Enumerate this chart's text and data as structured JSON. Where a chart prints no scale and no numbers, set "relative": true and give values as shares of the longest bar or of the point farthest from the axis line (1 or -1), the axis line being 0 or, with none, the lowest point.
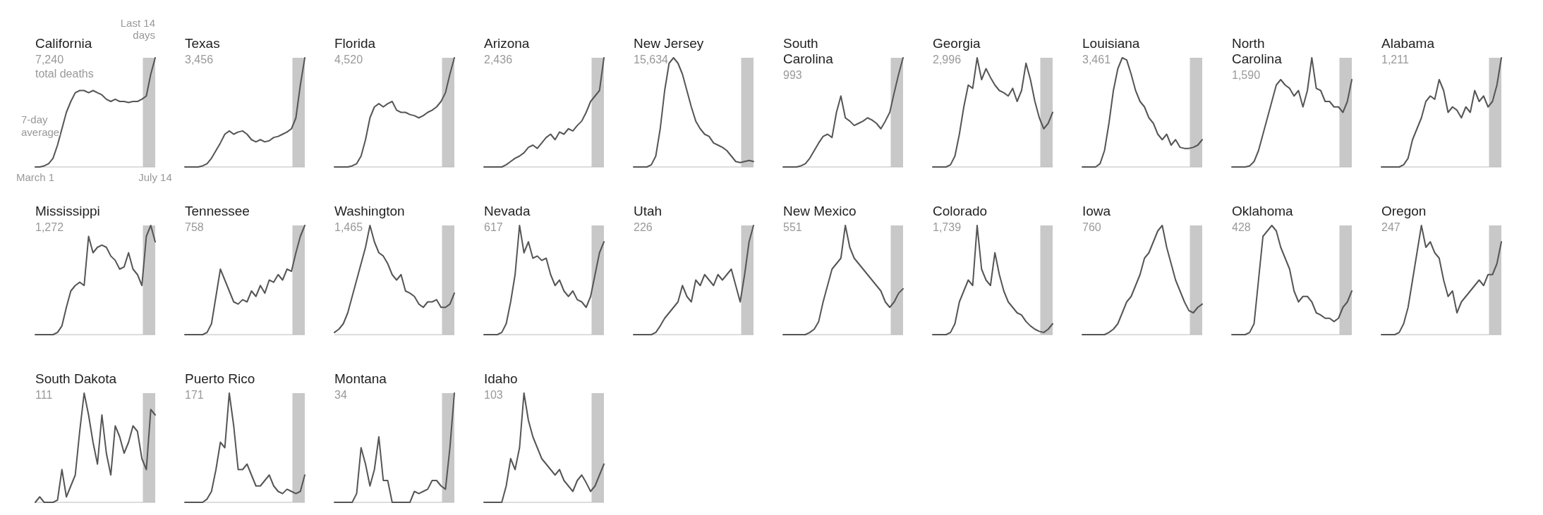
{
  "chart_data": [
    {
      "type": "line",
      "title": "California",
      "subtitle": "7,240",
      "annotations": [
        "total deaths",
        "7-day average",
        "Last 14 days"
      ],
      "relative": true,
      "color": "#555555",
      "tick_labels": "x",
      "categories": [
        "March 1",
        null,
        null,
        null,
        null,
        null,
        null,
        null,
        null,
        null,
        null,
        null,
        null,
        null,
        null,
        null,
        null,
        null,
        null,
        null,
        null,
        null,
        null,
        null,
        null,
        null,
        null,
        "July 14"
      ],
      "values": [
        0,
        0,
        0.01,
        0.03,
        0.08,
        0.2,
        0.35,
        0.5,
        0.6,
        0.68,
        0.7,
        0.7,
        0.68,
        0.7,
        0.68,
        0.66,
        0.62,
        0.6,
        0.62,
        0.6,
        0.6,
        0.59,
        0.6,
        0.6,
        0.62,
        0.65,
        0.85,
        1
      ]
    },
    {
      "type": "line",
      "title": "Texas",
      "subtitle": "3,456",
      "relative": true,
      "color": "#555555",
      "tick_labels": false,
      "categories": [
        null,
        null,
        null,
        null,
        null,
        null,
        null,
        null,
        null,
        null,
        null,
        null,
        null,
        null,
        null,
        null,
        null,
        null,
        null,
        null,
        null,
        null,
        null,
        null,
        null,
        null,
        null,
        null
      ],
      "values": [
        0,
        0,
        0,
        0,
        0.01,
        0.03,
        0.08,
        0.15,
        0.22,
        0.3,
        0.33,
        0.3,
        0.32,
        0.33,
        0.3,
        0.25,
        0.23,
        0.25,
        0.23,
        0.24,
        0.27,
        0.28,
        0.3,
        0.32,
        0.35,
        0.45,
        0.75,
        1
      ]
    },
    {
      "type": "line",
      "title": "Florida",
      "subtitle": "4,520",
      "relative": true,
      "color": "#555555",
      "tick_labels": false,
      "categories": [
        null,
        null,
        null,
        null,
        null,
        null,
        null,
        null,
        null,
        null,
        null,
        null,
        null,
        null,
        null,
        null,
        null,
        null,
        null,
        null,
        null,
        null,
        null,
        null,
        null,
        null,
        null,
        null
      ],
      "values": [
        0,
        0,
        0,
        0,
        0.01,
        0.03,
        0.1,
        0.25,
        0.45,
        0.55,
        0.58,
        0.55,
        0.58,
        0.6,
        0.52,
        0.5,
        0.5,
        0.48,
        0.47,
        0.45,
        0.47,
        0.5,
        0.52,
        0.55,
        0.6,
        0.68,
        0.85,
        1
      ]
    },
    {
      "type": "line",
      "title": "Arizona",
      "subtitle": "2,436",
      "relative": true,
      "color": "#555555",
      "tick_labels": false,
      "categories": [
        null,
        null,
        null,
        null,
        null,
        null,
        null,
        null,
        null,
        null,
        null,
        null,
        null,
        null,
        null,
        null,
        null,
        null,
        null,
        null,
        null,
        null,
        null,
        null,
        null,
        null,
        null,
        null
      ],
      "values": [
        0,
        0,
        0,
        0,
        0,
        0.02,
        0.05,
        0.08,
        0.1,
        0.13,
        0.18,
        0.2,
        0.17,
        0.22,
        0.27,
        0.3,
        0.25,
        0.32,
        0.3,
        0.35,
        0.33,
        0.38,
        0.42,
        0.5,
        0.6,
        0.65,
        0.7,
        1
      ]
    },
    {
      "type": "line",
      "title": "New Jersey",
      "subtitle": "15,634",
      "relative": true,
      "color": "#555555",
      "tick_labels": false,
      "categories": [
        null,
        null,
        null,
        null,
        null,
        null,
        null,
        null,
        null,
        null,
        null,
        null,
        null,
        null,
        null,
        null,
        null,
        null,
        null,
        null,
        null,
        null,
        null,
        null,
        null,
        null,
        null,
        null
      ],
      "values": [
        0,
        0,
        0,
        0,
        0.02,
        0.1,
        0.35,
        0.7,
        0.95,
        1,
        0.95,
        0.85,
        0.7,
        0.55,
        0.42,
        0.35,
        0.3,
        0.28,
        0.22,
        0.2,
        0.18,
        0.15,
        0.1,
        0.05,
        0.04,
        0.05,
        0.06,
        0.05
      ]
    },
    {
      "type": "line",
      "title": "South Carolina",
      "subtitle": "993",
      "relative": true,
      "color": "#555555",
      "tick_labels": false,
      "categories": [
        null,
        null,
        null,
        null,
        null,
        null,
        null,
        null,
        null,
        null,
        null,
        null,
        null,
        null,
        null,
        null,
        null,
        null,
        null,
        null,
        null,
        null,
        null,
        null,
        null,
        null,
        null,
        null
      ],
      "values": [
        0,
        0,
        0,
        0,
        0.01,
        0.03,
        0.08,
        0.15,
        0.22,
        0.28,
        0.3,
        0.27,
        0.5,
        0.65,
        0.45,
        0.42,
        0.38,
        0.4,
        0.42,
        0.45,
        0.43,
        0.4,
        0.35,
        0.42,
        0.5,
        0.68,
        0.85,
        1
      ]
    },
    {
      "type": "line",
      "title": "Georgia",
      "subtitle": "2,996",
      "relative": true,
      "color": "#555555",
      "tick_labels": false,
      "categories": [
        null,
        null,
        null,
        null,
        null,
        null,
        null,
        null,
        null,
        null,
        null,
        null,
        null,
        null,
        null,
        null,
        null,
        null,
        null,
        null,
        null,
        null,
        null,
        null,
        null,
        null,
        null,
        null
      ],
      "values": [
        0,
        0,
        0,
        0,
        0.02,
        0.1,
        0.3,
        0.55,
        0.75,
        0.72,
        1,
        0.8,
        0.9,
        0.82,
        0.75,
        0.7,
        0.68,
        0.65,
        0.72,
        0.6,
        0.7,
        0.95,
        0.8,
        0.6,
        0.45,
        0.35,
        0.4,
        0.5
      ]
    },
    {
      "type": "line",
      "title": "Louisiana",
      "subtitle": "3,461",
      "relative": true,
      "color": "#555555",
      "tick_labels": false,
      "categories": [
        null,
        null,
        null,
        null,
        null,
        null,
        null,
        null,
        null,
        null,
        null,
        null,
        null,
        null,
        null,
        null,
        null,
        null,
        null,
        null,
        null,
        null,
        null,
        null,
        null,
        null,
        null,
        null
      ],
      "values": [
        0,
        0,
        0,
        0,
        0.03,
        0.15,
        0.4,
        0.7,
        0.9,
        1,
        0.98,
        0.85,
        0.7,
        0.6,
        0.55,
        0.45,
        0.4,
        0.3,
        0.25,
        0.3,
        0.2,
        0.25,
        0.18,
        0.17,
        0.17,
        0.18,
        0.2,
        0.25
      ]
    },
    {
      "type": "line",
      "title": "North Carolina",
      "subtitle": "1,590",
      "relative": true,
      "color": "#555555",
      "tick_labels": false,
      "categories": [
        null,
        null,
        null,
        null,
        null,
        null,
        null,
        null,
        null,
        null,
        null,
        null,
        null,
        null,
        null,
        null,
        null,
        null,
        null,
        null,
        null,
        null,
        null,
        null,
        null,
        null,
        null,
        null
      ],
      "values": [
        0,
        0,
        0,
        0,
        0.01,
        0.05,
        0.15,
        0.3,
        0.45,
        0.6,
        0.75,
        0.8,
        0.75,
        0.72,
        0.65,
        0.7,
        0.55,
        0.7,
        1,
        0.72,
        0.7,
        0.6,
        0.6,
        0.55,
        0.55,
        0.5,
        0.6,
        0.8
      ]
    },
    {
      "type": "line",
      "title": "Alabama",
      "subtitle": "1,211",
      "relative": true,
      "color": "#555555",
      "tick_labels": false,
      "categories": [
        null,
        null,
        null,
        null,
        null,
        null,
        null,
        null,
        null,
        null,
        null,
        null,
        null,
        null,
        null,
        null,
        null,
        null,
        null,
        null,
        null,
        null,
        null,
        null,
        null,
        null,
        null,
        null
      ],
      "values": [
        0,
        0,
        0,
        0,
        0,
        0.02,
        0.08,
        0.25,
        0.35,
        0.45,
        0.6,
        0.65,
        0.62,
        0.8,
        0.7,
        0.5,
        0.55,
        0.52,
        0.45,
        0.55,
        0.5,
        0.7,
        0.6,
        0.65,
        0.55,
        0.6,
        0.75,
        1
      ]
    },
    {
      "type": "line",
      "title": "Mississippi",
      "subtitle": "1,272",
      "relative": true,
      "color": "#555555",
      "tick_labels": false,
      "categories": [
        null,
        null,
        null,
        null,
        null,
        null,
        null,
        null,
        null,
        null,
        null,
        null,
        null,
        null,
        null,
        null,
        null,
        null,
        null,
        null,
        null,
        null,
        null,
        null,
        null,
        null,
        null,
        null
      ],
      "values": [
        0,
        0,
        0,
        0,
        0,
        0.02,
        0.08,
        0.25,
        0.4,
        0.45,
        0.48,
        0.45,
        0.9,
        0.75,
        0.8,
        0.82,
        0.8,
        0.72,
        0.68,
        0.6,
        0.62,
        0.75,
        0.6,
        0.55,
        0.45,
        0.9,
        1,
        0.85
      ]
    },
    {
      "type": "line",
      "title": "Tennessee",
      "subtitle": "758",
      "relative": true,
      "color": "#555555",
      "tick_labels": false,
      "categories": [
        null,
        null,
        null,
        null,
        null,
        null,
        null,
        null,
        null,
        null,
        null,
        null,
        null,
        null,
        null,
        null,
        null,
        null,
        null,
        null,
        null,
        null,
        null,
        null,
        null,
        null,
        null,
        null
      ],
      "values": [
        0,
        0,
        0,
        0,
        0,
        0.02,
        0.1,
        0.35,
        0.6,
        0.5,
        0.4,
        0.3,
        0.28,
        0.32,
        0.3,
        0.4,
        0.35,
        0.45,
        0.38,
        0.5,
        0.48,
        0.55,
        0.5,
        0.6,
        0.58,
        0.75,
        0.9,
        1
      ]
    },
    {
      "type": "line",
      "title": "Washington",
      "subtitle": "1,465",
      "relative": true,
      "color": "#555555",
      "tick_labels": false,
      "categories": [
        null,
        null,
        null,
        null,
        null,
        null,
        null,
        null,
        null,
        null,
        null,
        null,
        null,
        null,
        null,
        null,
        null,
        null,
        null,
        null,
        null,
        null,
        null,
        null,
        null,
        null,
        null,
        null
      ],
      "values": [
        0.02,
        0.05,
        0.1,
        0.2,
        0.35,
        0.5,
        0.65,
        0.8,
        1,
        0.85,
        0.75,
        0.72,
        0.65,
        0.55,
        0.5,
        0.55,
        0.4,
        0.38,
        0.35,
        0.28,
        0.25,
        0.3,
        0.3,
        0.32,
        0.25,
        0.25,
        0.28,
        0.38
      ]
    },
    {
      "type": "line",
      "title": "Nevada",
      "subtitle": "617",
      "relative": true,
      "color": "#555555",
      "tick_labels": false,
      "categories": [
        null,
        null,
        null,
        null,
        null,
        null,
        null,
        null,
        null,
        null,
        null,
        null,
        null,
        null,
        null,
        null,
        null,
        null,
        null,
        null,
        null,
        null,
        null,
        null,
        null,
        null,
        null,
        null
      ],
      "values": [
        0,
        0,
        0,
        0,
        0.02,
        0.1,
        0.3,
        0.55,
        1,
        0.75,
        0.85,
        0.7,
        0.72,
        0.68,
        0.7,
        0.55,
        0.45,
        0.5,
        0.4,
        0.35,
        0.4,
        0.32,
        0.3,
        0.25,
        0.35,
        0.55,
        0.75,
        0.85
      ]
    },
    {
      "type": "line",
      "title": "Utah",
      "subtitle": "226",
      "relative": true,
      "color": "#555555",
      "tick_labels": false,
      "categories": [
        null,
        null,
        null,
        null,
        null,
        null,
        null,
        null,
        null,
        null,
        null,
        null,
        null,
        null,
        null,
        null,
        null,
        null,
        null,
        null,
        null,
        null,
        null,
        null,
        null,
        null,
        null,
        null
      ],
      "values": [
        0,
        0,
        0,
        0,
        0,
        0.02,
        0.08,
        0.15,
        0.2,
        0.25,
        0.3,
        0.45,
        0.35,
        0.3,
        0.5,
        0.45,
        0.55,
        0.5,
        0.45,
        0.55,
        0.5,
        0.55,
        0.6,
        0.45,
        0.3,
        0.55,
        0.85,
        1
      ]
    },
    {
      "type": "line",
      "title": "New Mexico",
      "subtitle": "551",
      "relative": true,
      "color": "#555555",
      "tick_labels": false,
      "categories": [
        null,
        null,
        null,
        null,
        null,
        null,
        null,
        null,
        null,
        null,
        null,
        null,
        null,
        null,
        null,
        null,
        null,
        null,
        null,
        null,
        null,
        null,
        null,
        null,
        null,
        null,
        null,
        null
      ],
      "values": [
        0,
        0,
        0,
        0,
        0,
        0,
        0.02,
        0.05,
        0.12,
        0.3,
        0.45,
        0.6,
        0.65,
        0.7,
        1,
        0.8,
        0.7,
        0.65,
        0.6,
        0.55,
        0.5,
        0.45,
        0.4,
        0.3,
        0.25,
        0.3,
        0.38,
        0.42
      ]
    },
    {
      "type": "line",
      "title": "Colorado",
      "subtitle": "1,739",
      "relative": true,
      "color": "#555555",
      "tick_labels": false,
      "categories": [
        null,
        null,
        null,
        null,
        null,
        null,
        null,
        null,
        null,
        null,
        null,
        null,
        null,
        null,
        null,
        null,
        null,
        null,
        null,
        null,
        null,
        null,
        null,
        null,
        null,
        null,
        null,
        null
      ],
      "values": [
        0,
        0,
        0,
        0,
        0.02,
        0.1,
        0.3,
        0.4,
        0.5,
        0.45,
        1,
        0.6,
        0.5,
        0.45,
        0.75,
        0.55,
        0.4,
        0.3,
        0.25,
        0.2,
        0.18,
        0.12,
        0.08,
        0.05,
        0.03,
        0.02,
        0.05,
        0.1
      ]
    },
    {
      "type": "line",
      "title": "Iowa",
      "subtitle": "760",
      "relative": true,
      "color": "#555555",
      "tick_labels": false,
      "categories": [
        null,
        null,
        null,
        null,
        null,
        null,
        null,
        null,
        null,
        null,
        null,
        null,
        null,
        null,
        null,
        null,
        null,
        null,
        null,
        null,
        null,
        null,
        null,
        null,
        null,
        null,
        null,
        null
      ],
      "values": [
        0,
        0,
        0,
        0,
        0,
        0,
        0.02,
        0.05,
        0.1,
        0.2,
        0.3,
        0.35,
        0.45,
        0.55,
        0.7,
        0.75,
        0.85,
        0.95,
        1,
        0.8,
        0.65,
        0.5,
        0.4,
        0.3,
        0.22,
        0.2,
        0.25,
        0.28
      ]
    },
    {
      "type": "line",
      "title": "Oklahoma",
      "subtitle": "428",
      "relative": true,
      "color": "#555555",
      "tick_labels": false,
      "categories": [
        null,
        null,
        null,
        null,
        null,
        null,
        null,
        null,
        null,
        null,
        null,
        null,
        null,
        null,
        null,
        null,
        null,
        null,
        null,
        null,
        null,
        null,
        null,
        null,
        null,
        null,
        null,
        null
      ],
      "values": [
        0,
        0,
        0,
        0,
        0.02,
        0.1,
        0.5,
        0.9,
        0.95,
        1,
        0.95,
        0.8,
        0.7,
        0.6,
        0.4,
        0.3,
        0.35,
        0.35,
        0.3,
        0.2,
        0.18,
        0.15,
        0.15,
        0.12,
        0.15,
        0.25,
        0.3,
        0.4
      ]
    },
    {
      "type": "line",
      "title": "Oregon",
      "subtitle": "247",
      "relative": true,
      "color": "#555555",
      "tick_labels": false,
      "categories": [
        null,
        null,
        null,
        null,
        null,
        null,
        null,
        null,
        null,
        null,
        null,
        null,
        null,
        null,
        null,
        null,
        null,
        null,
        null,
        null,
        null,
        null,
        null,
        null,
        null,
        null,
        null,
        null
      ],
      "values": [
        0,
        0,
        0,
        0,
        0.02,
        0.1,
        0.25,
        0.5,
        0.75,
        1,
        0.8,
        0.85,
        0.75,
        0.7,
        0.5,
        0.35,
        0.4,
        0.2,
        0.3,
        0.35,
        0.4,
        0.45,
        0.5,
        0.45,
        0.55,
        0.55,
        0.65,
        0.85
      ]
    },
    {
      "type": "line",
      "title": "South Dakota",
      "subtitle": "111",
      "relative": true,
      "color": "#555555",
      "tick_labels": false,
      "categories": [
        null,
        null,
        null,
        null,
        null,
        null,
        null,
        null,
        null,
        null,
        null,
        null,
        null,
        null,
        null,
        null,
        null,
        null,
        null,
        null,
        null,
        null,
        null,
        null,
        null,
        null,
        null,
        null
      ],
      "values": [
        0,
        0.05,
        0,
        0,
        0,
        0.02,
        0.3,
        0.05,
        0.15,
        0.25,
        0.65,
        1,
        0.8,
        0.55,
        0.35,
        0.8,
        0.45,
        0.25,
        0.7,
        0.6,
        0.45,
        0.55,
        0.7,
        0.65,
        0.4,
        0.3,
        0.85,
        0.8
      ]
    },
    {
      "type": "line",
      "title": "Puerto Rico",
      "subtitle": "171",
      "relative": true,
      "color": "#555555",
      "tick_labels": false,
      "categories": [
        null,
        null,
        null,
        null,
        null,
        null,
        null,
        null,
        null,
        null,
        null,
        null,
        null,
        null,
        null,
        null,
        null,
        null,
        null,
        null,
        null,
        null,
        null,
        null,
        null,
        null,
        null,
        null
      ],
      "values": [
        0,
        0,
        0,
        0,
        0,
        0.03,
        0.1,
        0.3,
        0.55,
        0.5,
        1,
        0.7,
        0.3,
        0.3,
        0.35,
        0.25,
        0.15,
        0.15,
        0.2,
        0.25,
        0.15,
        0.1,
        0.08,
        0.12,
        0.1,
        0.08,
        0.1,
        0.25
      ]
    },
    {
      "type": "line",
      "title": "Montana",
      "subtitle": "34",
      "relative": true,
      "color": "#555555",
      "tick_labels": false,
      "categories": [
        null,
        null,
        null,
        null,
        null,
        null,
        null,
        null,
        null,
        null,
        null,
        null,
        null,
        null,
        null,
        null,
        null,
        null,
        null,
        null,
        null,
        null,
        null,
        null,
        null,
        null,
        null,
        null
      ],
      "values": [
        0,
        0,
        0,
        0,
        0,
        0.08,
        0.5,
        0.35,
        0.15,
        0.3,
        0.6,
        0.2,
        0.2,
        0,
        0,
        0,
        0,
        0,
        0.1,
        0.08,
        0.1,
        0.12,
        0.2,
        0.2,
        0.15,
        0.12,
        0.5,
        1
      ]
    },
    {
      "type": "line",
      "title": "Idaho",
      "subtitle": "103",
      "relative": true,
      "color": "#555555",
      "tick_labels": false,
      "categories": [
        null,
        null,
        null,
        null,
        null,
        null,
        null,
        null,
        null,
        null,
        null,
        null,
        null,
        null,
        null,
        null,
        null,
        null,
        null,
        null,
        null,
        null,
        null,
        null,
        null,
        null,
        null,
        null
      ],
      "values": [
        0,
        0,
        0,
        0,
        0,
        0.15,
        0.4,
        0.3,
        0.5,
        1,
        0.75,
        0.6,
        0.5,
        0.4,
        0.35,
        0.3,
        0.25,
        0.3,
        0.2,
        0.15,
        0.1,
        0.2,
        0.25,
        0.18,
        0.1,
        0.15,
        0.25,
        0.35
      ]
    }
  ]
}
